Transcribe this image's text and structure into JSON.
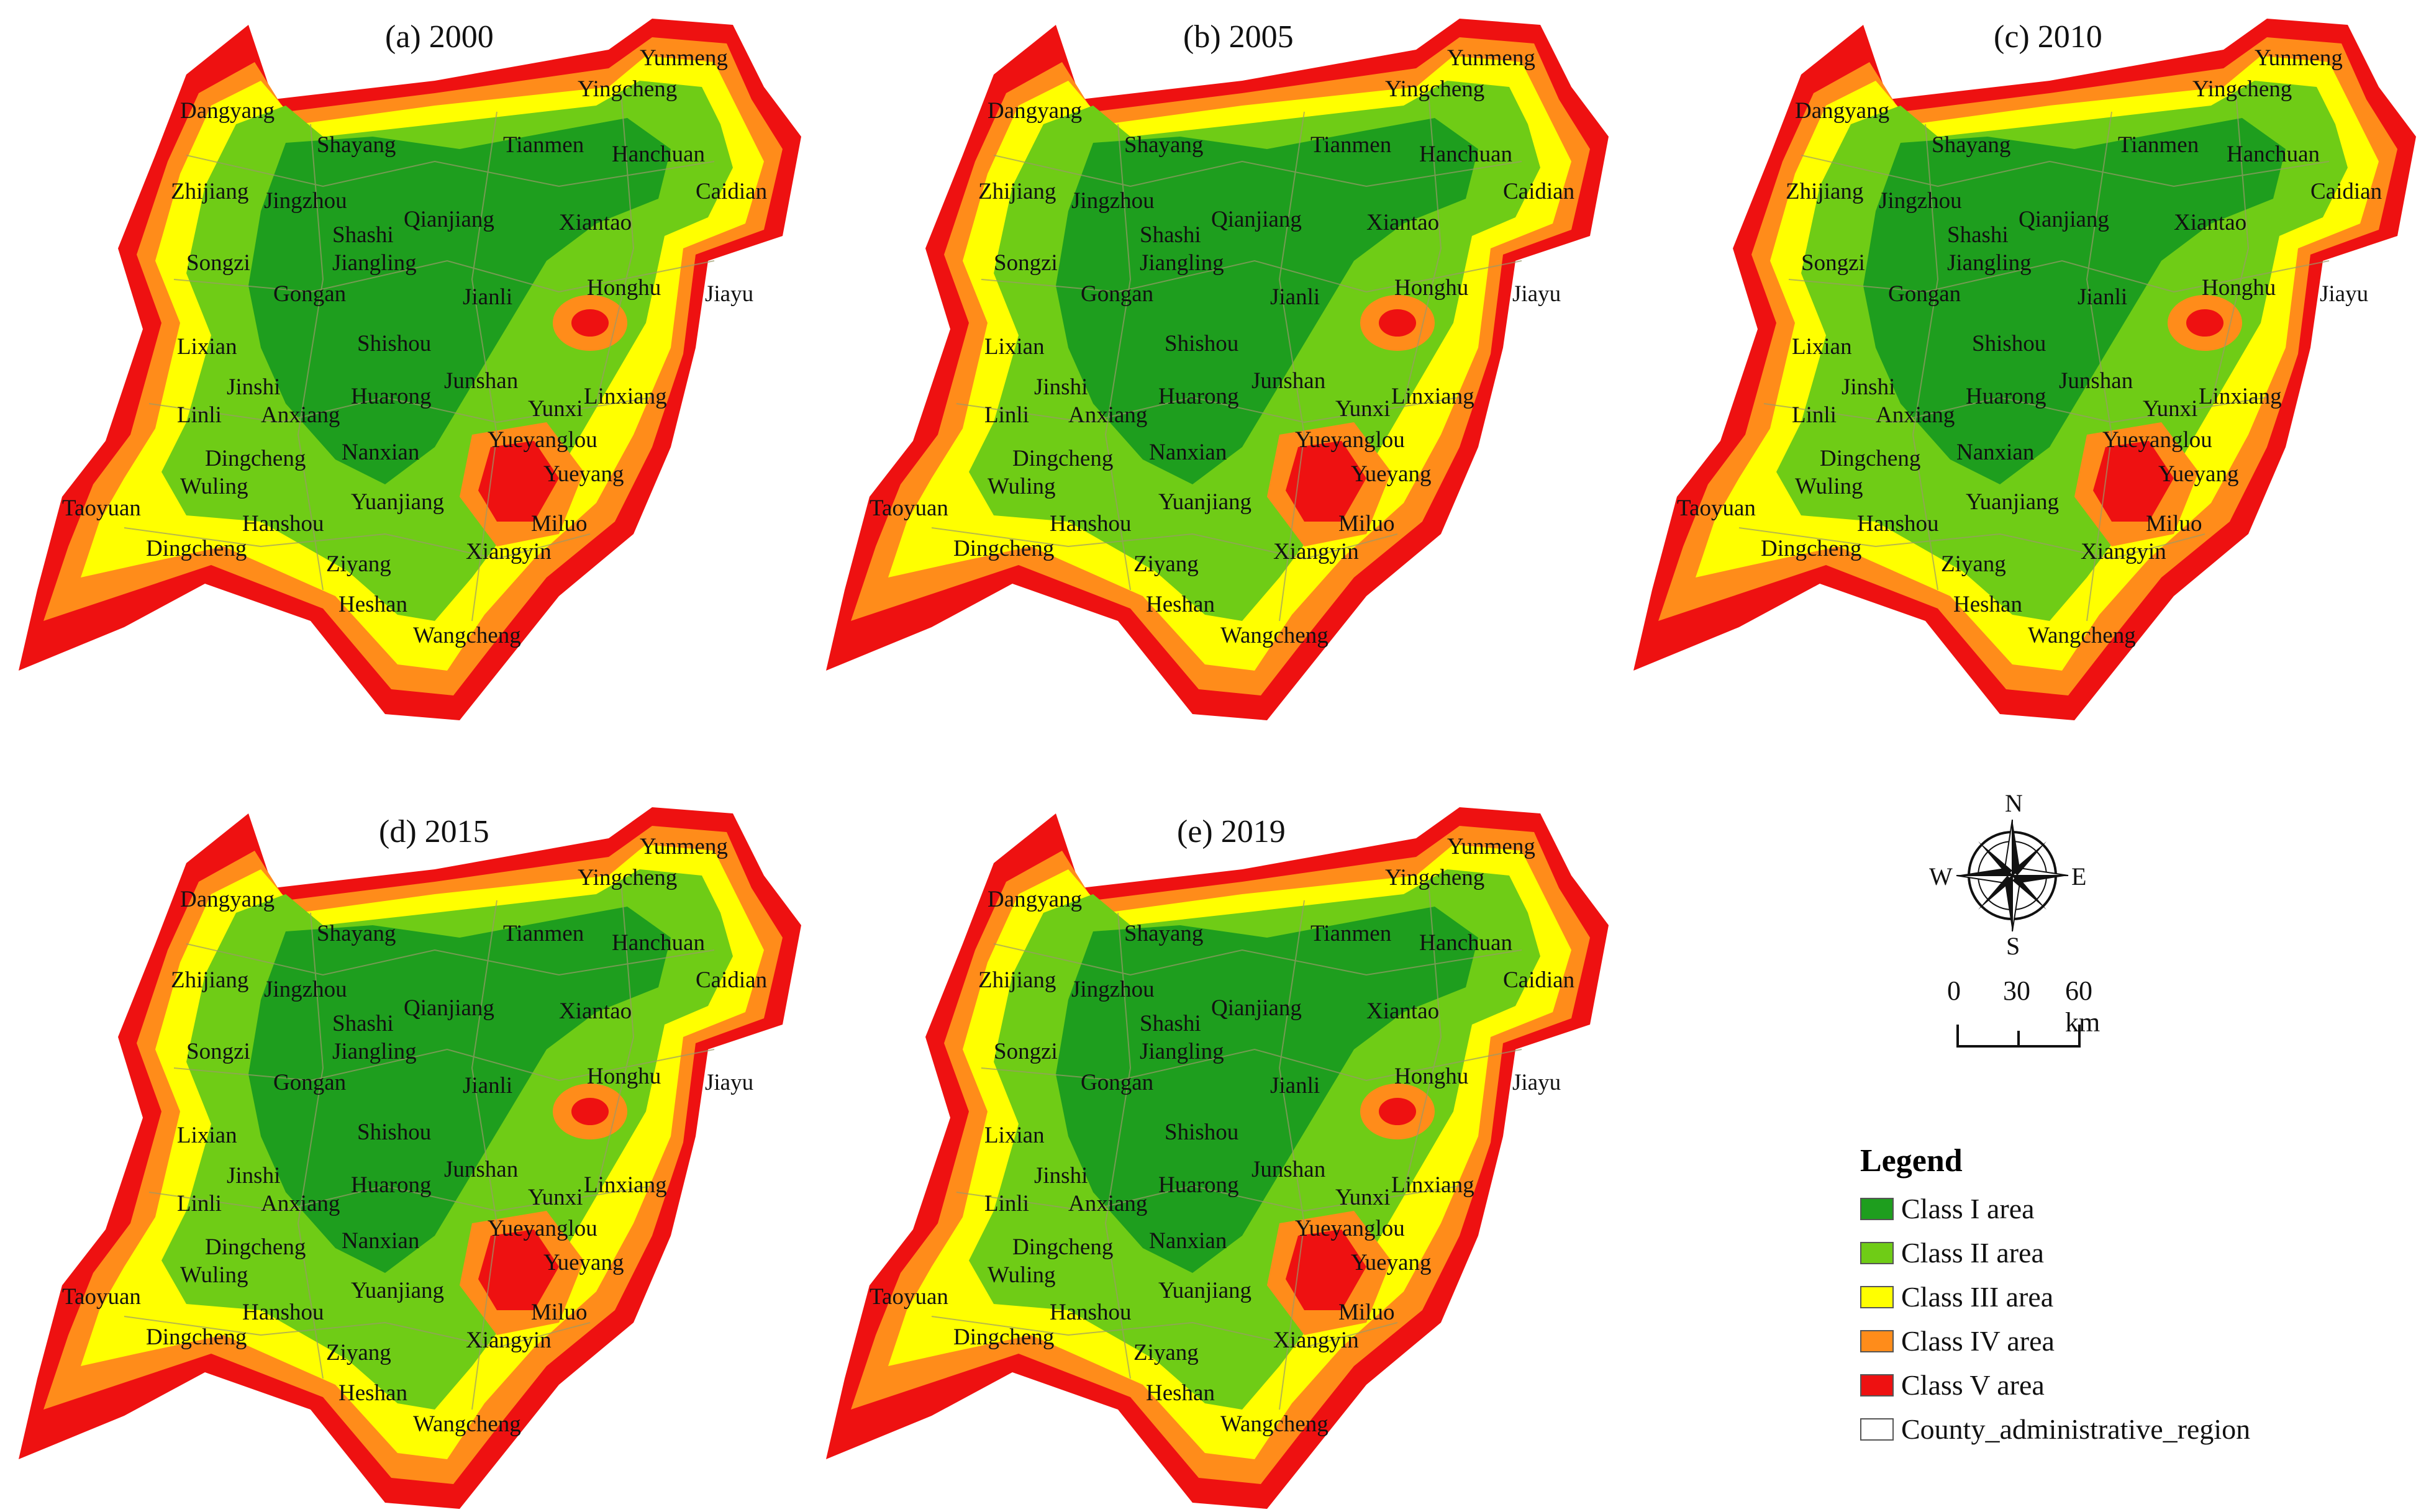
{
  "colors": {
    "class_i": "#1e9e1e",
    "class_ii": "#6fcc16",
    "class_iii": "#ffff00",
    "class_iv": "#ff8c1a",
    "class_v": "#ee1111",
    "county": "#ffffff"
  },
  "panels": [
    {
      "title": "(a) 2000"
    },
    {
      "title": "(b) 2005"
    },
    {
      "title": "(c) 2010"
    },
    {
      "title": "(d) 2015"
    },
    {
      "title": "(e) 2019"
    }
  ],
  "cities": [
    "Yunmeng",
    "Dangyang",
    "Yingcheng",
    "Shayang",
    "Tianmen",
    "Hanchuan",
    "Caidian",
    "Zhijiang",
    "Jingzhou",
    "Qianjiang",
    "Shashi",
    "Xiantao",
    "Songzi",
    "Jiangling",
    "Gongan",
    "Jianli",
    "Honghu",
    "Jiayu",
    "Lixian",
    "Shishou",
    "Junshan",
    "Jinshi",
    "Huarong",
    "Linxiang",
    "Yunxi",
    "Linli",
    "Anxiang",
    "Yueyanglou",
    "Dingcheng",
    "Nanxian",
    "Wuling",
    "Yueyang",
    "Taoyuan",
    "Yuanjiang",
    "Hanshou",
    "Miluo",
    "Dingcheng",
    "Xiangyin",
    "Ziyang",
    "Heshan",
    "Wangcheng"
  ],
  "compass": {
    "n": "N",
    "s": "S",
    "e": "E",
    "w": "W"
  },
  "scale_bar": {
    "labels": [
      "0",
      "30",
      "60 km"
    ]
  },
  "legend": {
    "title": "Legend",
    "items": [
      {
        "label": "Class I area",
        "color": "#1e9e1e"
      },
      {
        "label": "Class II area",
        "color": "#6fcc16"
      },
      {
        "label": "Class III area",
        "color": "#ffff00"
      },
      {
        "label": "Class IV area",
        "color": "#ff8c1a"
      },
      {
        "label": "Class V area",
        "color": "#ee1111"
      },
      {
        "label": "County_administrative_region",
        "color": "#ffffff"
      }
    ]
  }
}
